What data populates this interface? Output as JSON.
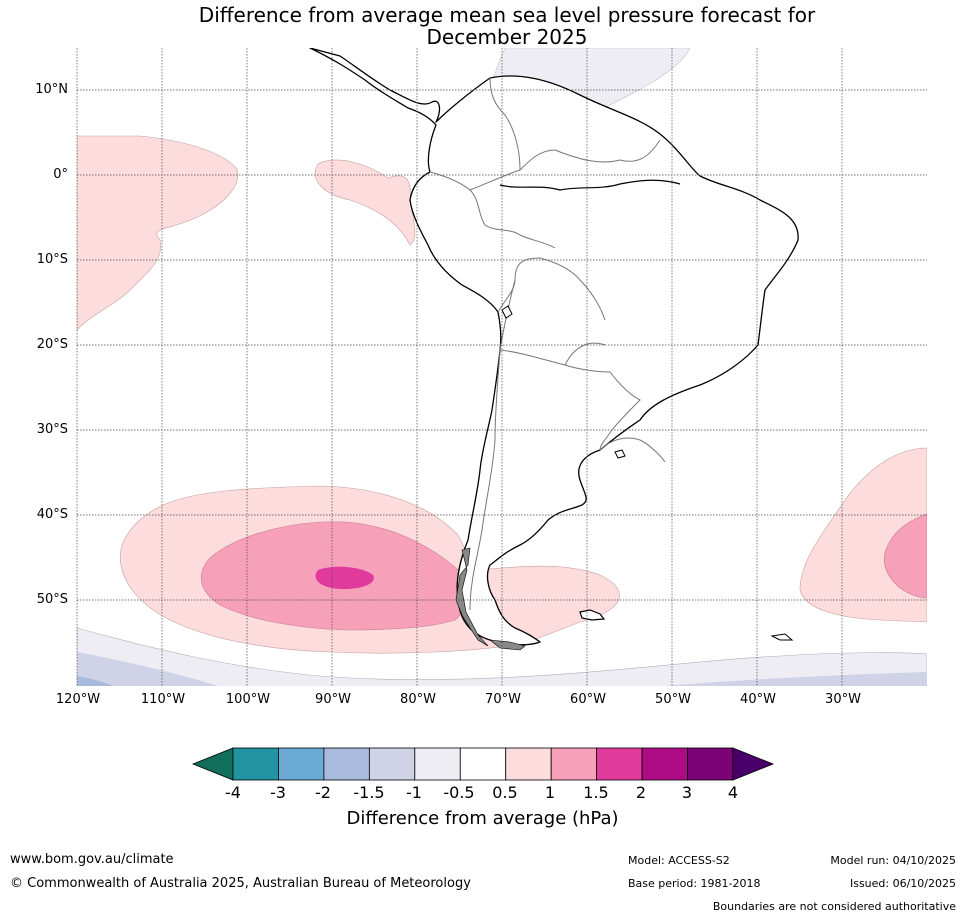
{
  "title": {
    "line1": "Difference from average mean sea level pressure forecast for",
    "line2": "December 2025"
  },
  "map": {
    "lat_labels": [
      "10°N",
      "0°",
      "10°S",
      "20°S",
      "30°S",
      "40°S",
      "50°S"
    ],
    "lon_labels": [
      "120°W",
      "110°W",
      "100°W",
      "90°W",
      "80°W",
      "70°W",
      "60°W",
      "50°W",
      "40°W",
      "30°W"
    ],
    "extent": {
      "lon": [
        -120,
        -20
      ],
      "lat": [
        -60,
        15
      ]
    }
  },
  "colorbar": {
    "label": "Difference from average (hPa)",
    "ticks": [
      "-4",
      "-3",
      "-2",
      "-1.5",
      "-1",
      "-0.5",
      "0.5",
      "1",
      "1.5",
      "2",
      "3",
      "4"
    ],
    "colors": [
      "#116e5b",
      "#2293a0",
      "#6aaad3",
      "#a8bbdc",
      "#d0d3e8",
      "#efedf4",
      "#ffffff",
      "#fcdcdc",
      "#f7a0b9",
      "#e03a9c",
      "#ad0b84",
      "#7a0176",
      "#4a006a"
    ]
  },
  "footer": {
    "url": "www.bom.gov.au/climate",
    "copyright": "© Commonwealth of Australia 2025, Australian Bureau of Meteorology",
    "model": "Model: ACCESS-S2",
    "base_period": "Base period: 1981-2018",
    "model_run": "Model run: 04/10/2025",
    "issued": "Issued: 06/10/2025",
    "disclaimer": "Boundaries are not considered authoritative"
  }
}
